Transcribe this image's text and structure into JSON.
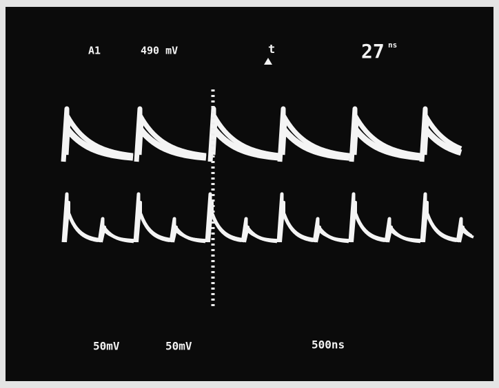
{
  "screen": {
    "top_labels": {
      "channel": "A1",
      "level": "490 mV",
      "trigger": "t",
      "time_value": "27",
      "time_unit": "ns"
    },
    "bottom_labels": {
      "ch1_scale": "50mV",
      "ch2_scale": "50mV",
      "timebase": "500ns"
    }
  }
}
